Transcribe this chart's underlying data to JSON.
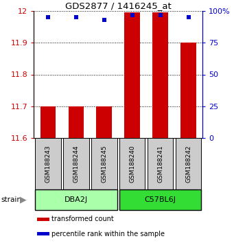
{
  "title": "GDS2877 / 1416245_at",
  "samples": [
    "GSM188243",
    "GSM188244",
    "GSM188245",
    "GSM188240",
    "GSM188241",
    "GSM188242"
  ],
  "groups": [
    {
      "name": "DBA2J",
      "indices": [
        0,
        1,
        2
      ],
      "color": "#AAFFAA"
    },
    {
      "name": "C57BL6J",
      "indices": [
        3,
        4,
        5
      ],
      "color": "#33DD33"
    }
  ],
  "transformed_counts": [
    11.7,
    11.7,
    11.7,
    11.995,
    11.995,
    11.9
  ],
  "percentile_ranks": [
    95,
    95,
    93,
    97,
    97,
    95
  ],
  "ylim_left": [
    11.6,
    12.0
  ],
  "ylim_right": [
    0,
    100
  ],
  "yticks_left": [
    11.6,
    11.7,
    11.8,
    11.9,
    12.0
  ],
  "ytick_labels_left": [
    "11.6",
    "11.7",
    "11.8",
    "11.9",
    "12"
  ],
  "yticks_right": [
    0,
    25,
    50,
    75,
    100
  ],
  "ytick_labels_right": [
    "0",
    "25",
    "50",
    "75",
    "100%"
  ],
  "bar_color": "#CC0000",
  "dot_color": "#0000CC",
  "bar_bottom": 11.6,
  "bar_width": 0.55,
  "left_tick_color": "#CC0000",
  "right_tick_color": "#0000CC",
  "sample_box_color": "#CCCCCC",
  "legend_bar_label": "transformed count",
  "legend_dot_label": "percentile rank within the sample"
}
